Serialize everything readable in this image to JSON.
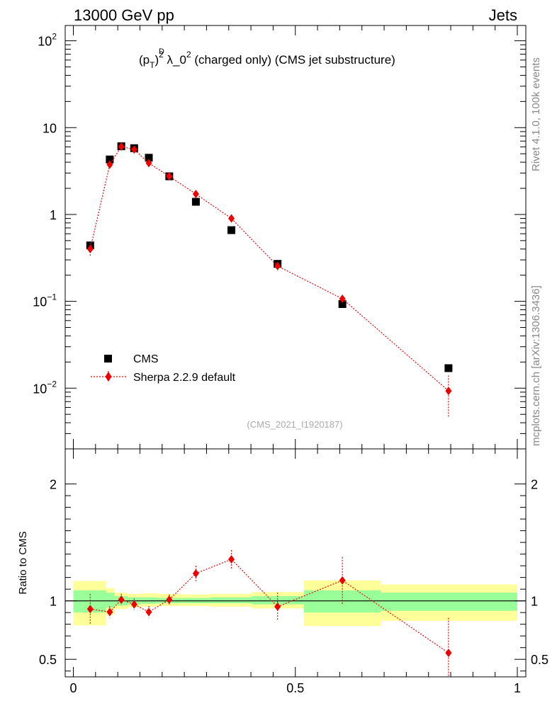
{
  "header": {
    "left": "13000 GeV pp",
    "right": "Jets",
    "observable_lhs": "(p",
    "observable_sup_d": "D",
    "observable_sub_t": "T",
    "observable_rest": ")",
    "observable_sup2": "2",
    "observable_lambda": " λ_0",
    "observable_sup2b": "2",
    "observable_suffix": " (charged only) (CMS jet substructure)",
    "side_rivet": "Rivet 4.1.0,  100k events",
    "side_mcplots": "mcplots.cern.ch [arXiv:1306.3436]",
    "analysis_id": "(CMS_2021_I1920187)"
  },
  "chart_data": [
    {
      "type": "scatter",
      "panel": "main",
      "yscale": "log",
      "ylim": [
        0.002,
        150
      ],
      "xlim": [
        0,
        1
      ],
      "yticks": [
        {
          "value": 100,
          "label_base": "10",
          "label_exp": "2"
        },
        {
          "value": 10,
          "label_base": "10",
          "label_exp": ""
        },
        {
          "value": 1,
          "label_base": "1",
          "label_exp": ""
        },
        {
          "value": 0.1,
          "label_base": "10",
          "label_exp": "−1"
        },
        {
          "value": 0.01,
          "label_base": "10",
          "label_exp": "−2"
        }
      ],
      "legend": [
        {
          "label": "CMS",
          "marker": "square",
          "color": "#000000"
        },
        {
          "label": "Sherpa 2.2.9 default",
          "marker": "diamond",
          "color": "#ee0000"
        }
      ],
      "series": [
        {
          "name": "CMS",
          "color": "#000000",
          "x": [
            0.038,
            0.082,
            0.108,
            0.137,
            0.17,
            0.216,
            0.276,
            0.356,
            0.46,
            0.606,
            0.845
          ],
          "y": [
            0.44,
            4.3,
            6.1,
            5.8,
            4.5,
            2.75,
            1.4,
            0.66,
            0.27,
            0.093,
            0.017
          ]
        },
        {
          "name": "Sherpa 2.2.9 default",
          "color": "#ee0000",
          "x": [
            0.038,
            0.082,
            0.108,
            0.137,
            0.17,
            0.216,
            0.276,
            0.356,
            0.46,
            0.606,
            0.845
          ],
          "y": [
            0.4,
            3.75,
            6.05,
            5.6,
            3.9,
            2.75,
            1.72,
            0.9,
            0.255,
            0.107,
            0.0093
          ],
          "yerr_lo": [
            0.07,
            0.3,
            0.3,
            0.3,
            0.25,
            0.12,
            0.1,
            0.06,
            0.03,
            0.012,
            0.0047
          ],
          "yerr_hi": [
            0.07,
            0.3,
            0.3,
            0.3,
            0.25,
            0.12,
            0.1,
            0.06,
            0.03,
            0.012,
            0.0047
          ]
        }
      ]
    },
    {
      "type": "scatter",
      "panel": "ratio",
      "ylabel": "Ratio to CMS",
      "ylim": [
        0.35,
        2.3
      ],
      "xlim": [
        0,
        1
      ],
      "yticks": [
        {
          "value": 2,
          "label": "2"
        },
        {
          "value": 1,
          "label": "1"
        },
        {
          "value": 0.5,
          "label": "0.5"
        }
      ],
      "xticks": [
        {
          "value": 0,
          "label": "0"
        },
        {
          "value": 0.5,
          "label": "0.5"
        },
        {
          "value": 1,
          "label": "1"
        }
      ],
      "bands": [
        {
          "x0": 0.0,
          "x1": 0.074,
          "g_lo": 0.9,
          "g_hi": 1.09,
          "y_lo": 0.79,
          "y_hi": 1.17
        },
        {
          "x0": 0.074,
          "x1": 0.093,
          "g_lo": 0.94,
          "g_hi": 1.07,
          "y_lo": 0.88,
          "y_hi": 1.11
        },
        {
          "x0": 0.093,
          "x1": 0.122,
          "g_lo": 0.96,
          "g_hi": 1.04,
          "y_lo": 0.93,
          "y_hi": 1.07
        },
        {
          "x0": 0.122,
          "x1": 0.152,
          "g_lo": 0.97,
          "g_hi": 1.03,
          "y_lo": 0.945,
          "y_hi": 1.06
        },
        {
          "x0": 0.152,
          "x1": 0.189,
          "g_lo": 0.975,
          "g_hi": 1.03,
          "y_lo": 0.95,
          "y_hi": 1.065
        },
        {
          "x0": 0.189,
          "x1": 0.244,
          "g_lo": 0.98,
          "g_hi": 1.025,
          "y_lo": 0.955,
          "y_hi": 1.06
        },
        {
          "x0": 0.244,
          "x1": 0.309,
          "g_lo": 0.98,
          "g_hi": 1.025,
          "y_lo": 0.955,
          "y_hi": 1.055
        },
        {
          "x0": 0.309,
          "x1": 0.402,
          "g_lo": 0.98,
          "g_hi": 1.03,
          "y_lo": 0.95,
          "y_hi": 1.06
        },
        {
          "x0": 0.402,
          "x1": 0.519,
          "g_lo": 0.97,
          "g_hi": 1.04,
          "y_lo": 0.935,
          "y_hi": 1.075
        },
        {
          "x0": 0.519,
          "x1": 0.693,
          "g_lo": 0.9,
          "g_hi": 1.09,
          "y_lo": 0.785,
          "y_hi": 1.175
        },
        {
          "x0": 0.693,
          "x1": 1.0,
          "g_lo": 0.915,
          "g_hi": 1.07,
          "y_lo": 0.83,
          "y_hi": 1.14
        }
      ],
      "series": [
        {
          "name": "Sherpa 2.2.9 default",
          "color": "#ee0000",
          "x": [
            0.038,
            0.082,
            0.108,
            0.137,
            0.17,
            0.216,
            0.276,
            0.356,
            0.46,
            0.606,
            0.845
          ],
          "y": [
            0.93,
            0.905,
            1.01,
            0.97,
            0.905,
            1.01,
            1.235,
            1.355,
            0.95,
            1.175,
            0.555
          ],
          "yerr_lo": [
            0.13,
            0.05,
            0.05,
            0.05,
            0.05,
            0.045,
            0.065,
            0.08,
            0.12,
            0.2,
            0.22
          ],
          "yerr_hi": [
            0.13,
            0.05,
            0.05,
            0.05,
            0.05,
            0.045,
            0.065,
            0.08,
            0.12,
            0.2,
            0.3
          ]
        }
      ]
    }
  ]
}
